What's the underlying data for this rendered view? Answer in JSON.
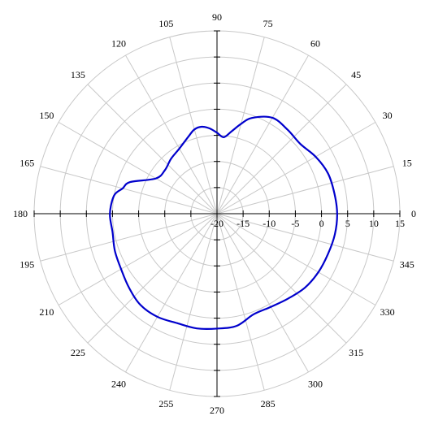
{
  "chart_data": {
    "type": "line",
    "coordinate_system": "polar",
    "angle_unit": "degrees",
    "angle_labels": [
      "0",
      "15",
      "30",
      "45",
      "60",
      "75",
      "90",
      "105",
      "120",
      "135",
      "150",
      "165",
      "180",
      "195",
      "210",
      "225",
      "240",
      "255",
      "270",
      "285",
      "300",
      "315",
      "330",
      "345"
    ],
    "radial_labels": [
      "-20",
      "-15",
      "-10",
      "-5",
      "0",
      "5",
      "10",
      "15"
    ],
    "rlim": [
      -20,
      15
    ],
    "grid": true,
    "series": [
      {
        "color": "#0000cc",
        "points": [
          {
            "theta": 0,
            "r": 3.0
          },
          {
            "theta": 10,
            "r": 2.8
          },
          {
            "theta": 20,
            "r": 2.6
          },
          {
            "theta": 30,
            "r": 1.8
          },
          {
            "theta": 40,
            "r": 0.8
          },
          {
            "theta": 50,
            "r": 1.0
          },
          {
            "theta": 60,
            "r": 1.2
          },
          {
            "theta": 70,
            "r": -0.5
          },
          {
            "theta": 75,
            "r": -2.2
          },
          {
            "theta": 80,
            "r": -4.0
          },
          {
            "theta": 85,
            "r": -5.3
          },
          {
            "theta": 90,
            "r": -4.5
          },
          {
            "theta": 95,
            "r": -3.6
          },
          {
            "theta": 100,
            "r": -3.1
          },
          {
            "theta": 105,
            "r": -3.3
          },
          {
            "theta": 110,
            "r": -4.2
          },
          {
            "theta": 120,
            "r": -5.6
          },
          {
            "theta": 130,
            "r": -6.3
          },
          {
            "theta": 140,
            "r": -7.0
          },
          {
            "theta": 150,
            "r": -6.5
          },
          {
            "theta": 160,
            "r": -2.3
          },
          {
            "theta": 165,
            "r": -1.3
          },
          {
            "theta": 170,
            "r": 0.0
          },
          {
            "theta": 180,
            "r": 0.5
          },
          {
            "theta": 190,
            "r": 0.3
          },
          {
            "theta": 200,
            "r": 0.8
          },
          {
            "theta": 210,
            "r": 1.2
          },
          {
            "theta": 220,
            "r": 2.0
          },
          {
            "theta": 230,
            "r": 2.8
          },
          {
            "theta": 240,
            "r": 2.8
          },
          {
            "theta": 250,
            "r": 2.3
          },
          {
            "theta": 260,
            "r": 2.3
          },
          {
            "theta": 270,
            "r": 2.0
          },
          {
            "theta": 280,
            "r": 1.8
          },
          {
            "theta": 290,
            "r": 0.5
          },
          {
            "theta": 300,
            "r": 0.6
          },
          {
            "theta": 310,
            "r": 1.2
          },
          {
            "theta": 320,
            "r": 2.0
          },
          {
            "theta": 330,
            "r": 2.4
          },
          {
            "theta": 340,
            "r": 2.6
          },
          {
            "theta": 350,
            "r": 2.9
          },
          {
            "theta": 360,
            "r": 3.0
          }
        ]
      }
    ]
  }
}
